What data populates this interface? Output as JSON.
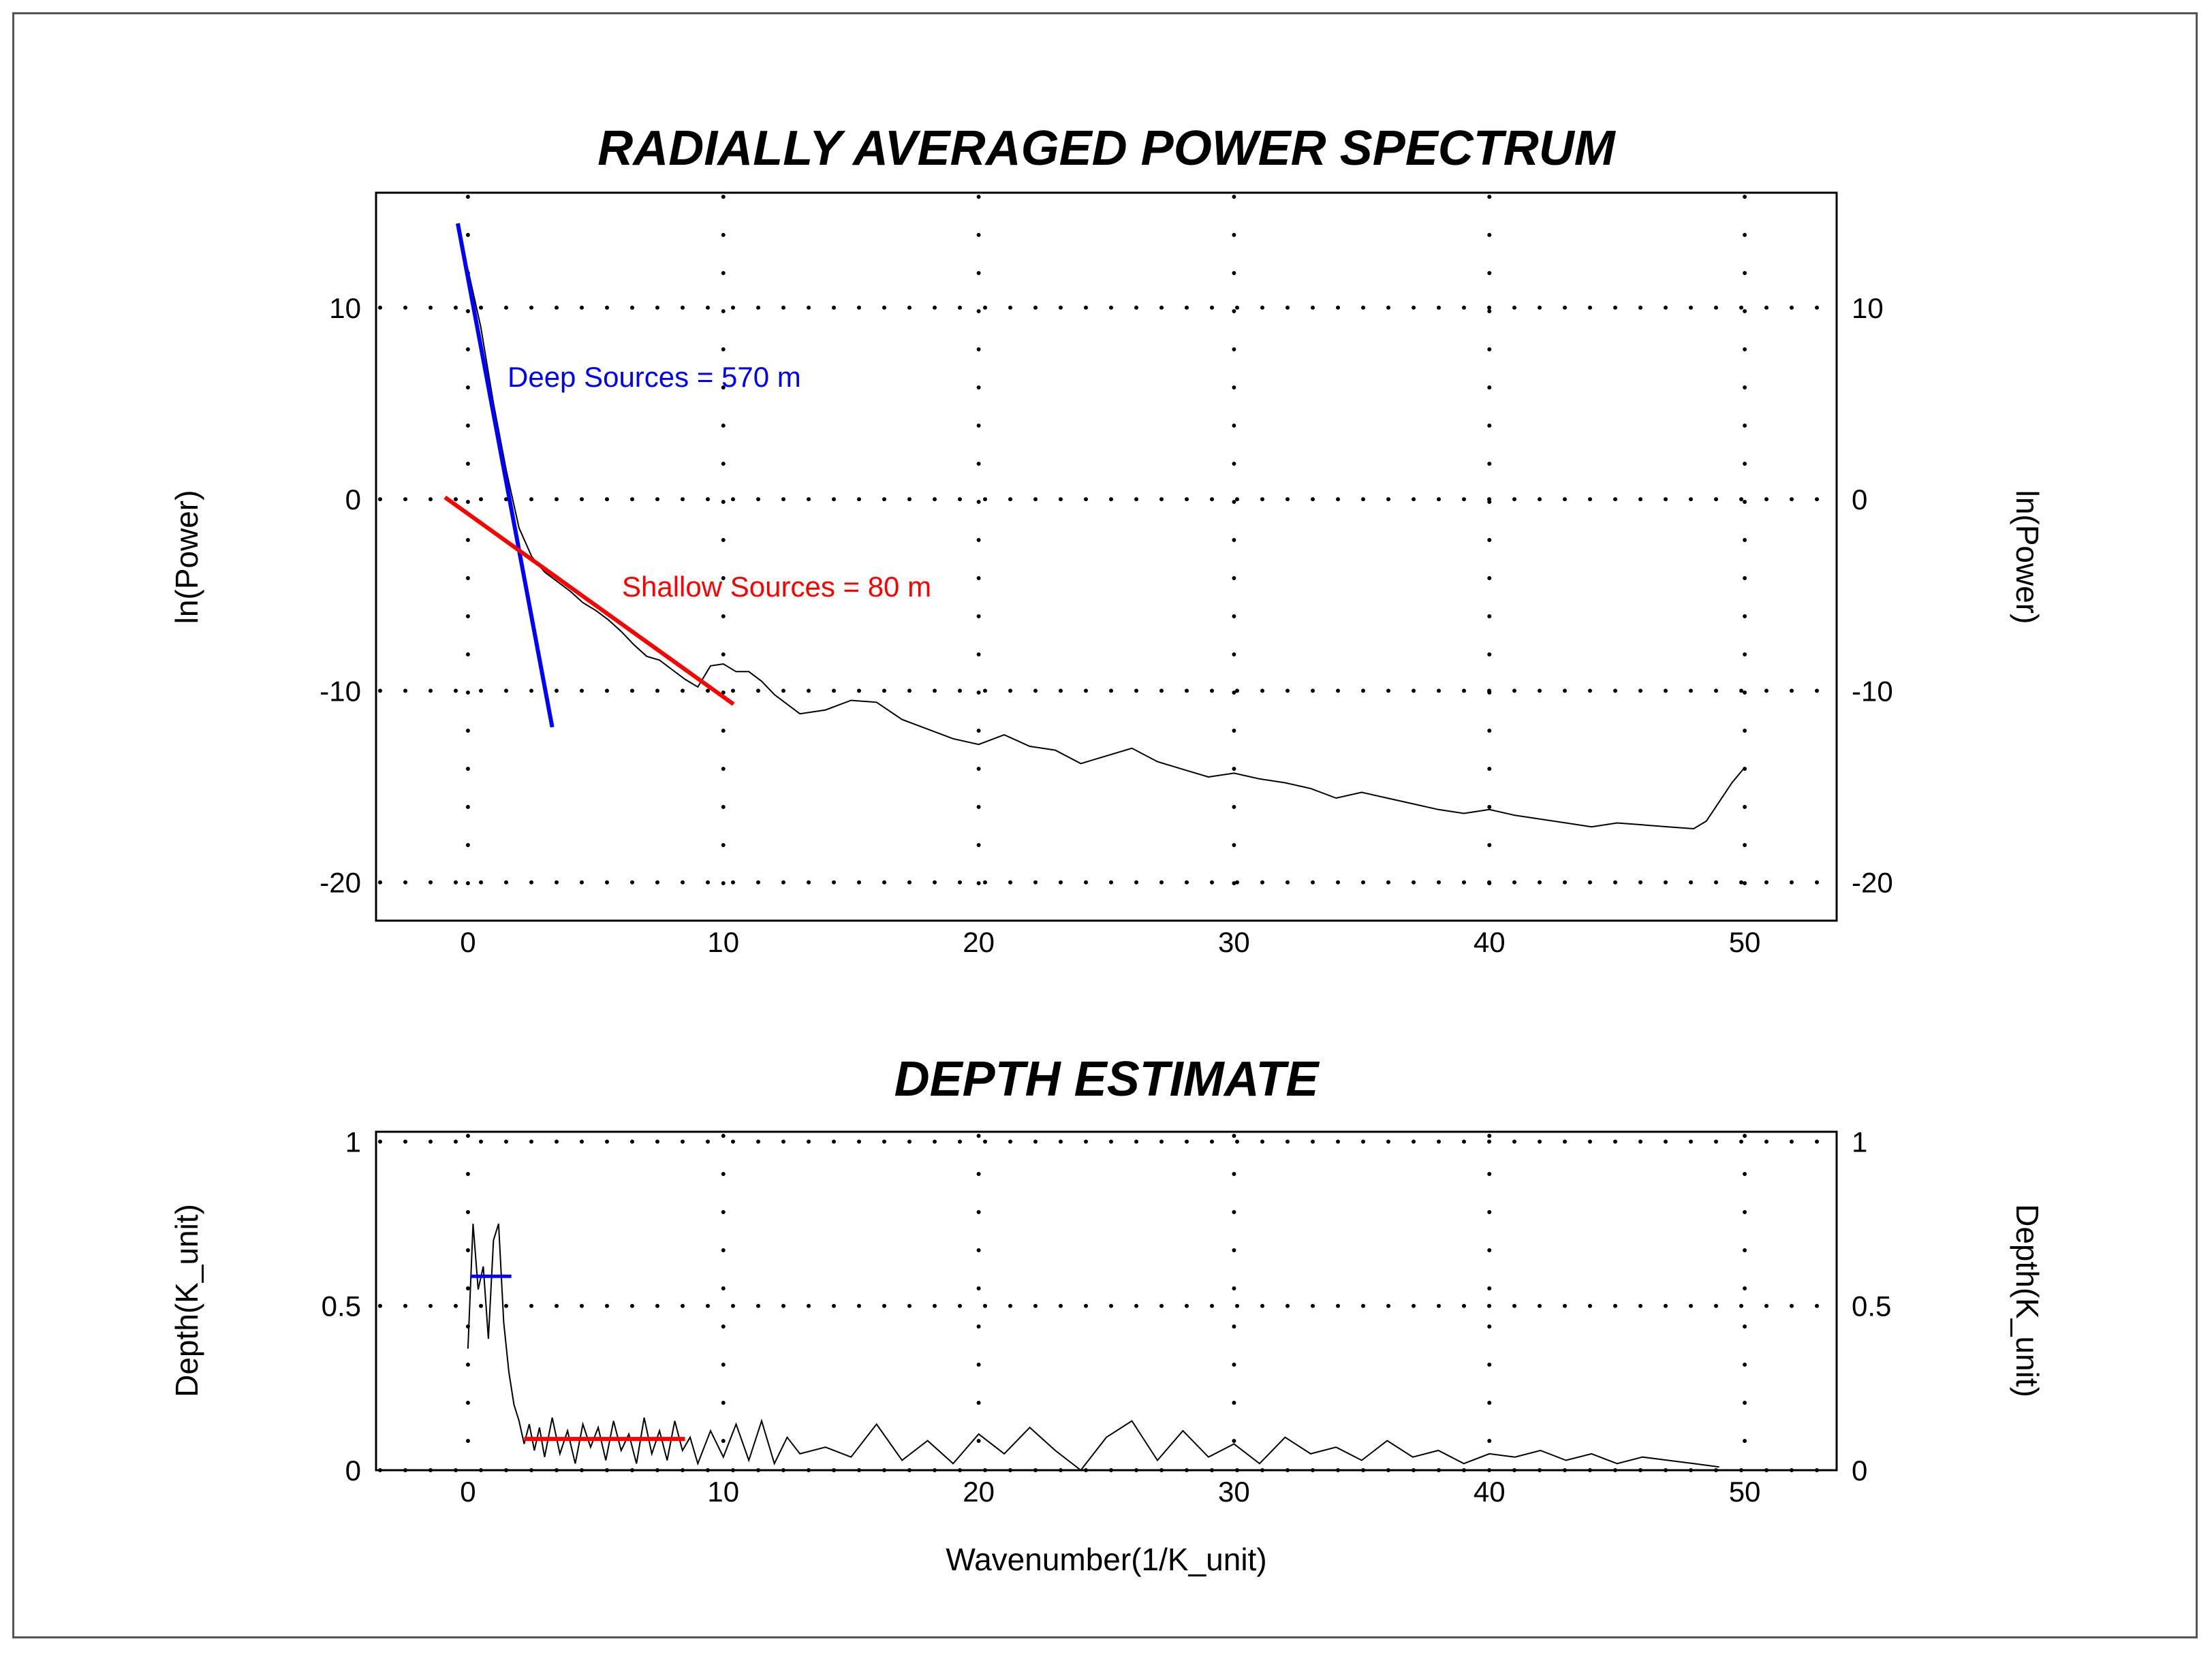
{
  "chart_data": [
    {
      "type": "line",
      "title": "RADIALLY AVERAGED POWER SPECTRUM",
      "xlabel": "",
      "ylabel": "ln(Power)",
      "ylabel_right": "ln(Power)",
      "xlim": [
        -3.6,
        53.6
      ],
      "ylim": [
        -22,
        16
      ],
      "xticks": [
        0,
        10,
        20,
        30,
        40,
        50
      ],
      "yticks": [
        10,
        0,
        -10,
        -20
      ],
      "grid": "dotted",
      "colors": {
        "spectrum": "#000000",
        "deep": "#0000ff",
        "shallow": "#ff0000"
      },
      "series": [
        {
          "values_x": [
            0,
            0.5,
            1,
            1.5,
            2,
            2.5,
            3,
            3.5,
            4,
            4.5,
            5,
            5.5,
            6,
            6.5,
            7,
            7.5,
            8,
            8.5,
            9,
            9.5,
            10,
            10.5,
            11,
            11.5,
            12,
            13,
            14,
            15,
            16,
            17,
            18,
            19,
            20,
            21,
            22,
            23,
            24,
            25,
            26,
            27,
            28,
            29,
            30,
            31,
            32,
            33,
            34,
            35,
            36,
            37,
            38,
            39,
            40,
            41,
            42,
            43,
            44,
            45,
            46,
            47,
            48,
            48.5,
            49,
            49.5,
            50
          ],
          "values_y": [
            12.0,
            9.0,
            5.0,
            1.5,
            -1.5,
            -3.0,
            -3.8,
            -4.3,
            -4.8,
            -5.4,
            -5.8,
            -6.3,
            -6.9,
            -7.6,
            -8.2,
            -8.4,
            -8.9,
            -9.4,
            -9.8,
            -8.7,
            -8.6,
            -9.0,
            -9.0,
            -9.5,
            -10.2,
            -11.2,
            -11.0,
            -10.5,
            -10.6,
            -11.5,
            -12.0,
            -12.5,
            -12.8,
            -12.3,
            -12.9,
            -13.1,
            -13.8,
            -13.4,
            -13.0,
            -13.7,
            -14.1,
            -14.5,
            -14.3,
            -14.6,
            -14.8,
            -15.1,
            -15.6,
            -15.3,
            -15.6,
            -15.9,
            -16.2,
            -16.4,
            -16.2,
            -16.5,
            -16.7,
            -16.9,
            -17.1,
            -16.9,
            -17.0,
            -17.1,
            -17.2,
            -16.8,
            -15.8,
            -14.8,
            -14.0
          ]
        }
      ],
      "fit_lines": [
        {
          "label": "Deep Sources = 570 m",
          "x": [
            -0.4,
            3.3
          ],
          "y": [
            14.4,
            -11.9
          ]
        },
        {
          "label": "Shallow Sources = 80 m",
          "x": [
            -0.9,
            10.4
          ],
          "y": [
            0.1,
            -10.7
          ]
        }
      ]
    },
    {
      "type": "line",
      "title": "DEPTH ESTIMATE",
      "xlabel": "Wavenumber(1/K_unit)",
      "ylabel": "Depth(K_unit)",
      "ylabel_right": "Depth(K_unit)",
      "xlim": [
        -3.6,
        53.6
      ],
      "ylim": [
        0,
        1.03
      ],
      "xticks": [
        0,
        10,
        20,
        30,
        40,
        50
      ],
      "yticks": [
        1,
        0.5,
        0
      ],
      "grid": "dotted",
      "series": [
        {
          "values_x": [
            0,
            0.2,
            0.4,
            0.6,
            0.8,
            1.0,
            1.2,
            1.4,
            1.6,
            1.8,
            2.0,
            2.2,
            2.4,
            2.6,
            2.8,
            3.0,
            3.3,
            3.6,
            3.9,
            4.2,
            4.5,
            4.8,
            5.1,
            5.4,
            5.7,
            6.0,
            6.3,
            6.6,
            6.9,
            7.2,
            7.5,
            7.8,
            8.1,
            8.4,
            8.7,
            9.0,
            9.5,
            10,
            10.5,
            11,
            11.5,
            12,
            12.5,
            13,
            14,
            15,
            16,
            17,
            18,
            19,
            20,
            21,
            22,
            23,
            24,
            25,
            26,
            27,
            28,
            29,
            30,
            31,
            32,
            33,
            34,
            35,
            36,
            37,
            38,
            39,
            40,
            41,
            42,
            43,
            44,
            45,
            46,
            47,
            48,
            49
          ],
          "values_y": [
            0.37,
            0.75,
            0.55,
            0.62,
            0.4,
            0.7,
            0.75,
            0.45,
            0.3,
            0.2,
            0.15,
            0.08,
            0.14,
            0.06,
            0.13,
            0.04,
            0.16,
            0.05,
            0.12,
            0.02,
            0.14,
            0.07,
            0.13,
            0.03,
            0.15,
            0.06,
            0.11,
            0.02,
            0.16,
            0.05,
            0.12,
            0.03,
            0.15,
            0.06,
            0.1,
            0.02,
            0.12,
            0.04,
            0.14,
            0.03,
            0.15,
            0.02,
            0.1,
            0.05,
            0.07,
            0.04,
            0.14,
            0.03,
            0.09,
            0.02,
            0.11,
            0.05,
            0.13,
            0.06,
            0.0,
            0.1,
            0.15,
            0.03,
            0.12,
            0.04,
            0.08,
            0.02,
            0.1,
            0.05,
            0.07,
            0.03,
            0.09,
            0.04,
            0.06,
            0.02,
            0.05,
            0.04,
            0.06,
            0.03,
            0.05,
            0.02,
            0.04,
            0.03,
            0.02,
            0.01
          ]
        }
      ],
      "fit_lines": [
        {
          "label": "deep",
          "x": [
            0.1,
            1.7
          ],
          "y": [
            0.59,
            0.59
          ]
        },
        {
          "label": "shallow",
          "x": [
            2.2,
            8.5
          ],
          "y": [
            0.095,
            0.095
          ]
        }
      ]
    }
  ]
}
